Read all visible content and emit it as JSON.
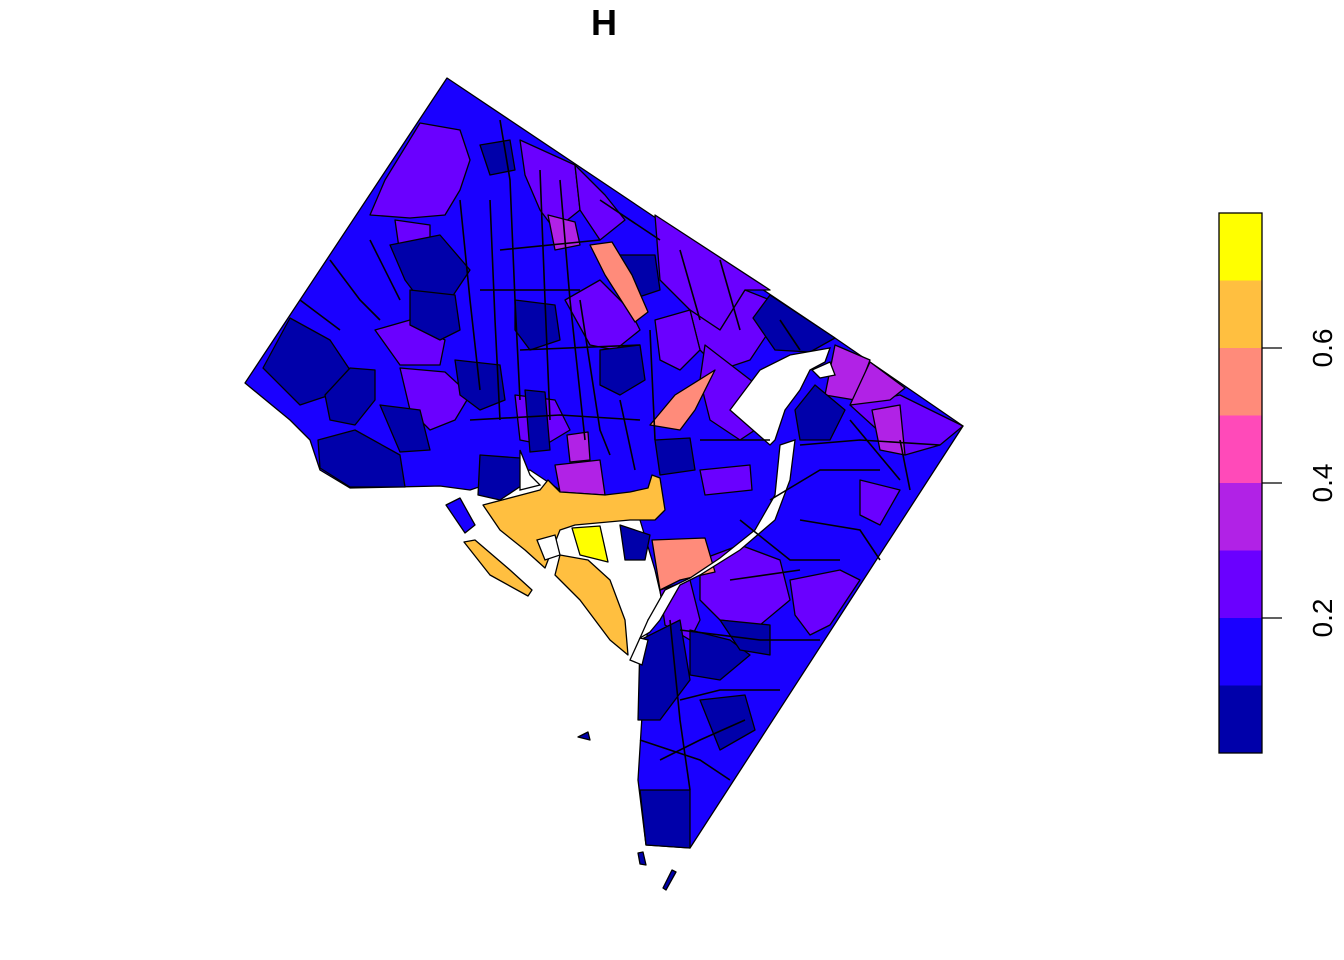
{
  "title": "H",
  "legend": {
    "breaks": [
      0.0,
      0.1,
      0.2,
      0.3,
      0.4,
      0.5,
      0.6,
      0.7,
      0.8
    ],
    "colors": [
      "#0000AA",
      "#1A00FF",
      "#6A00FF",
      "#B122E6",
      "#FF4AB9",
      "#FF8B7A",
      "#FFBF40",
      "#FFFF00"
    ],
    "ticks": [
      {
        "value": 0.2,
        "label": "0.2"
      },
      {
        "value": 0.4,
        "label": "0.4"
      },
      {
        "value": 0.6,
        "label": "0.6"
      }
    ]
  },
  "colors": {
    "water": "#ffffff",
    "outline": "#000000"
  }
}
